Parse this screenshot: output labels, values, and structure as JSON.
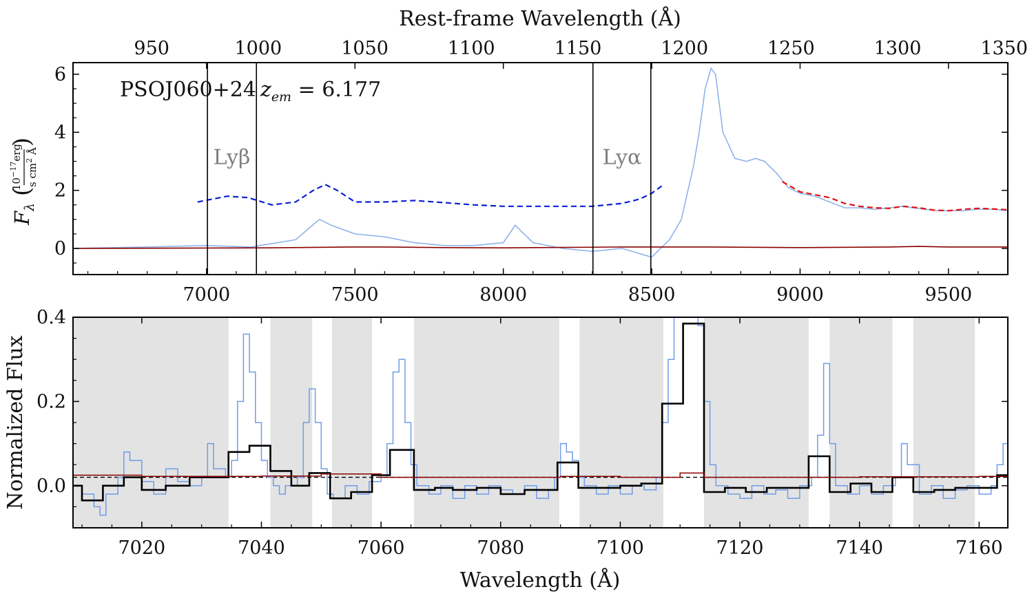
{
  "chart_data": [
    {
      "panel": "top",
      "type": "line",
      "object_label": "PSOJ060+24",
      "redshift_label": "z_em = 6.177",
      "ylabel": "F_λ (10^-17 erg / s cm² Å)",
      "top_xlabel": "Rest-frame Wavelength (Å)",
      "xlim": [
        6550,
        9700
      ],
      "ylim": [
        -0.9,
        6.4
      ],
      "top_xlim": [
        913.1,
        1351.7
      ],
      "xticks": [
        7000,
        7500,
        8000,
        8500,
        9000,
        9500
      ],
      "yticks": [
        0,
        2,
        4,
        6
      ],
      "top_xticks": [
        950,
        1000,
        1050,
        1100,
        1150,
        1200,
        1250,
        1300,
        1350
      ],
      "vlines": [
        7003,
        7168,
        8302,
        8497
      ],
      "line_labels": [
        {
          "text": "Lyβ",
          "x": 7085,
          "y": 2.9
        },
        {
          "text": "Lyα",
          "x": 8400,
          "y": 2.9
        }
      ],
      "series": [
        {
          "color": "#8fb2ea",
          "x": [
            6550,
            6800,
            7000,
            7150,
            7300,
            7380,
            7420,
            7500,
            7600,
            7700,
            7800,
            7900,
            8000,
            8040,
            8100,
            8200,
            8300,
            8400,
            8500,
            8560,
            8600,
            8640,
            8660,
            8680,
            8700,
            8715,
            8740,
            8780,
            8820,
            8850,
            8880,
            8920,
            8960,
            9000,
            9050,
            9100,
            9150,
            9200,
            9250,
            9300,
            9340,
            9380,
            9420,
            9460,
            9500,
            9550,
            9600,
            9650,
            9700
          ],
          "y": [
            0.0,
            0.05,
            0.1,
            0.05,
            0.3,
            1.0,
            0.8,
            0.5,
            0.4,
            0.2,
            0.1,
            0.1,
            0.2,
            0.8,
            0.2,
            0.0,
            -0.1,
            0.0,
            -0.3,
            0.3,
            1.0,
            2.8,
            4.0,
            5.5,
            6.2,
            6.0,
            4.0,
            3.1,
            3.0,
            3.1,
            3.0,
            2.6,
            2.1,
            1.9,
            1.8,
            1.6,
            1.4,
            1.4,
            1.35,
            1.4,
            1.45,
            1.4,
            1.35,
            1.3,
            1.3,
            1.3,
            1.35,
            1.35,
            1.3
          ]
        },
        {
          "color": "#8b0000",
          "x": [
            6550,
            7200,
            7500,
            7600,
            7800,
            8000,
            8400,
            8700,
            9000,
            9300,
            9400,
            9500,
            9700
          ],
          "y": [
            0.0,
            0.02,
            0.05,
            0.05,
            0.03,
            0.02,
            0.05,
            0.05,
            0.03,
            0.05,
            0.07,
            0.05,
            0.05
          ]
        },
        {
          "color": "#0a1fd6",
          "style": "dashed",
          "x": [
            6970,
            7070,
            7140,
            7220,
            7300,
            7360,
            7400,
            7440,
            7500,
            7600,
            7700,
            7800,
            7900,
            8000,
            8100,
            8200,
            8300,
            8400,
            8460,
            8500,
            8540
          ],
          "y": [
            1.6,
            1.8,
            1.75,
            1.5,
            1.6,
            2.0,
            2.2,
            2.0,
            1.6,
            1.6,
            1.65,
            1.58,
            1.5,
            1.45,
            1.45,
            1.45,
            1.45,
            1.55,
            1.7,
            1.9,
            2.2
          ]
        },
        {
          "color": "#e01010",
          "style": "dashed",
          "x": [
            8940,
            9000,
            9050,
            9100,
            9150,
            9200,
            9250,
            9300,
            9350,
            9400,
            9450,
            9500,
            9550,
            9600,
            9650,
            9700
          ],
          "y": [
            2.3,
            1.95,
            1.85,
            1.75,
            1.55,
            1.45,
            1.4,
            1.38,
            1.45,
            1.4,
            1.32,
            1.3,
            1.35,
            1.38,
            1.36,
            1.33
          ]
        }
      ]
    },
    {
      "panel": "bottom",
      "type": "line",
      "xlabel": "Wavelength (Å)",
      "ylabel": "Normalized Flux",
      "xlim": [
        7008.5,
        7164.8
      ],
      "ylim": [
        -0.1,
        0.4
      ],
      "xticks": [
        7020,
        7040,
        7060,
        7080,
        7100,
        7120,
        7140,
        7160
      ],
      "yticks": [
        0.0,
        0.2,
        0.4
      ],
      "gray_bands": [
        [
          7008.5,
          7034.5
        ],
        [
          7041.5,
          7048.5
        ],
        [
          7051.8,
          7058.5
        ],
        [
          7065.5,
          7089.8
        ],
        [
          7093.2,
          7107.2
        ],
        [
          7114.0,
          7131.5
        ],
        [
          7135.0,
          7145.5
        ],
        [
          7149.0,
          7159.3
        ]
      ],
      "zero_line": 0.02,
      "series": [
        {
          "color": "#6f9ce8",
          "x": [
            7008.5,
            7010,
            7012,
            7013,
            7014,
            7016,
            7017,
            7018,
            7020,
            7022,
            7024,
            7026,
            7028,
            7030,
            7031,
            7032,
            7034,
            7035,
            7036,
            7037,
            7038,
            7039,
            7040,
            7041,
            7042,
            7043,
            7044,
            7046,
            7047,
            7048,
            7049,
            7050,
            7051,
            7052,
            7054,
            7056,
            7058,
            7060,
            7061,
            7062,
            7063,
            7064,
            7065,
            7066,
            7068,
            7070,
            7072,
            7074,
            7076,
            7078,
            7080,
            7082,
            7084,
            7086,
            7088,
            7089,
            7090,
            7091,
            7092,
            7093,
            7094,
            7096,
            7098,
            7100,
            7102,
            7104,
            7106,
            7107,
            7108,
            7109,
            7110,
            7111,
            7112,
            7113,
            7114,
            7115,
            7116,
            7118,
            7120,
            7122,
            7124,
            7126,
            7128,
            7130,
            7132,
            7133,
            7134,
            7135,
            7136,
            7138,
            7140,
            7142,
            7144,
            7146,
            7147,
            7148,
            7150,
            7152,
            7154,
            7156,
            7158,
            7160,
            7162,
            7163,
            7164,
            7164.8
          ],
          "y": [
            0.0,
            -0.02,
            -0.05,
            -0.07,
            -0.02,
            0.02,
            0.08,
            0.06,
            0.01,
            -0.02,
            0.04,
            0.01,
            0.0,
            0.02,
            0.1,
            0.04,
            0.02,
            0.06,
            0.2,
            0.36,
            0.27,
            0.15,
            0.06,
            0.02,
            0.0,
            -0.02,
            0.0,
            0.02,
            0.15,
            0.23,
            0.15,
            0.04,
            -0.02,
            -0.03,
            0.0,
            -0.02,
            0.01,
            0.02,
            0.1,
            0.27,
            0.3,
            0.15,
            0.05,
            0.0,
            -0.02,
            0.0,
            -0.03,
            0.0,
            -0.02,
            0.0,
            -0.01,
            -0.02,
            0.0,
            -0.03,
            -0.01,
            0.02,
            0.1,
            0.08,
            0.06,
            0.02,
            0.0,
            -0.02,
            0.0,
            -0.02,
            0.0,
            -0.01,
            0.02,
            0.15,
            0.3,
            0.4,
            0.45,
            0.43,
            0.4,
            0.38,
            0.2,
            0.05,
            0.0,
            -0.02,
            -0.03,
            0.0,
            -0.02,
            -0.01,
            -0.03,
            0.0,
            0.02,
            0.12,
            0.29,
            0.1,
            0.0,
            -0.02,
            0.0,
            -0.02,
            0.0,
            0.02,
            0.1,
            0.05,
            -0.02,
            0.0,
            -0.03,
            -0.01,
            0.0,
            -0.02,
            0.0,
            0.05,
            0.1,
            0.06
          ]
        },
        {
          "color": "#000000",
          "style": "step",
          "x": [
            7008.5,
            7010,
            7013.5,
            7017,
            7020,
            7024,
            7028,
            7034.5,
            7038,
            7041.5,
            7045,
            7048,
            7051.5,
            7055,
            7058.5,
            7061.5,
            7065.5,
            7069,
            7072,
            7076,
            7080,
            7084,
            7089.5,
            7093,
            7097,
            7100,
            7103.5,
            7107,
            7110.5,
            7114,
            7117.5,
            7121,
            7124.5,
            7128,
            7131.5,
            7135,
            7138.5,
            7142,
            7145.5,
            7149,
            7152.5,
            7156,
            7159.5,
            7163,
            7164.8
          ],
          "y": [
            0.0,
            -0.035,
            0.0,
            0.02,
            -0.01,
            0.0,
            0.02,
            0.08,
            0.095,
            0.035,
            0.0,
            0.03,
            -0.03,
            -0.015,
            0.025,
            0.085,
            -0.01,
            -0.005,
            -0.01,
            -0.005,
            -0.02,
            -0.01,
            0.055,
            -0.005,
            -0.005,
            0.0,
            0.005,
            0.195,
            0.385,
            -0.015,
            -0.005,
            -0.015,
            -0.005,
            -0.005,
            0.07,
            -0.015,
            0.005,
            -0.015,
            0.02,
            -0.015,
            -0.01,
            -0.005,
            -0.005,
            0.025,
            0.025
          ]
        },
        {
          "color": "#8b0000",
          "x": [
            7008.5,
            7020,
            7040,
            7050,
            7060,
            7090,
            7100,
            7110,
            7114,
            7120,
            7140,
            7160,
            7164.8
          ],
          "y": [
            0.025,
            0.022,
            0.023,
            0.028,
            0.02,
            0.022,
            0.02,
            0.03,
            0.02,
            0.02,
            0.021,
            0.022,
            0.022
          ]
        }
      ]
    }
  ]
}
